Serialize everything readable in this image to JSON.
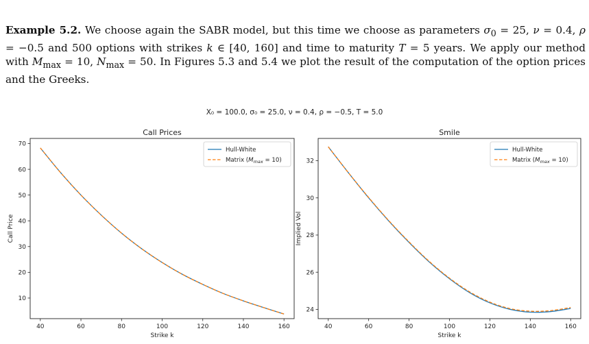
{
  "paragraph": {
    "label": "Example 5.2.",
    "parts": [
      " We choose again the SABR model, but this time we choose as parameters ",
      "σ",
      "0",
      " = 25, ",
      "ν",
      " = 0.4, ",
      "ρ",
      " = −0.5 and 500 options with strikes ",
      "k",
      " ∈ [40, 160] and time to maturity ",
      "T",
      " = 5 years. We apply our method with ",
      "M",
      "max",
      " = 10, ",
      "N",
      "max",
      " = 50. In Figures 5.3 and 5.4 we plot the result of the computation of the option prices and the Greeks."
    ]
  },
  "figure": {
    "suptitle": "X₀ = 100.0, σ₀ = 25.0, ν = 0.4, ρ = −0.5, T = 5.0"
  },
  "chart_data": [
    {
      "type": "line",
      "title": "Call Prices",
      "xlabel": "Strike k",
      "ylabel": "Call Price",
      "xlim": [
        35,
        165
      ],
      "ylim": [
        2,
        72
      ],
      "xticks": [
        40,
        60,
        80,
        100,
        120,
        140,
        160
      ],
      "yticks": [
        10,
        20,
        30,
        40,
        50,
        60,
        70
      ],
      "legend": "top-right",
      "grid": false,
      "series": [
        {
          "name": "Hull-White",
          "color": "#1f77b4",
          "style": "solid",
          "x": [
            40,
            50,
            60,
            70,
            80,
            90,
            100,
            110,
            120,
            130,
            140,
            150,
            160
          ],
          "y": [
            68.3,
            58.7,
            50.0,
            42.2,
            35.2,
            29.1,
            23.8,
            19.2,
            15.3,
            11.8,
            8.9,
            6.3,
            3.8
          ]
        },
        {
          "name": "Matrix (M_max = 10)",
          "color": "#ff7f0e",
          "style": "dashed",
          "x": [
            40,
            50,
            60,
            70,
            80,
            90,
            100,
            110,
            120,
            130,
            140,
            150,
            160
          ],
          "y": [
            68.3,
            58.7,
            50.0,
            42.2,
            35.2,
            29.1,
            23.8,
            19.2,
            15.3,
            11.8,
            8.9,
            6.3,
            3.8
          ]
        }
      ]
    },
    {
      "type": "line",
      "title": "Smile",
      "xlabel": "Strike k",
      "ylabel": "Implied Vol",
      "xlim": [
        35,
        165
      ],
      "ylim": [
        23.5,
        33.2
      ],
      "xticks": [
        40,
        60,
        80,
        100,
        120,
        140,
        160
      ],
      "yticks": [
        24,
        26,
        28,
        30,
        32
      ],
      "legend": "top-right",
      "grid": false,
      "series": [
        {
          "name": "Hull-White",
          "color": "#1f77b4",
          "style": "solid",
          "x": [
            40,
            50,
            60,
            70,
            80,
            90,
            100,
            110,
            120,
            130,
            140,
            150,
            160
          ],
          "y": [
            32.75,
            31.35,
            30.0,
            28.75,
            27.6,
            26.55,
            25.65,
            24.9,
            24.35,
            24.0,
            23.85,
            23.88,
            24.05
          ]
        },
        {
          "name": "Matrix (M_max = 10)",
          "color": "#ff7f0e",
          "style": "dashed",
          "x": [
            40,
            50,
            60,
            70,
            80,
            90,
            100,
            110,
            120,
            130,
            140,
            150,
            160
          ],
          "y": [
            32.75,
            31.35,
            30.02,
            28.77,
            27.63,
            26.58,
            25.68,
            24.94,
            24.39,
            24.04,
            23.9,
            23.93,
            24.1
          ]
        }
      ]
    }
  ]
}
